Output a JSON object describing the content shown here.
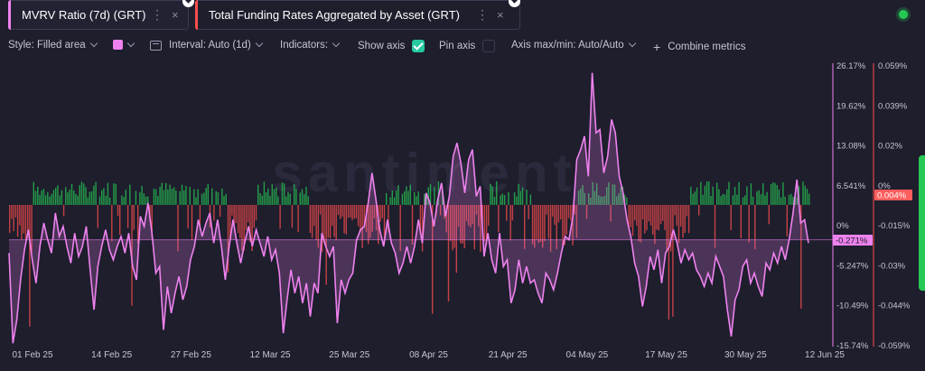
{
  "tabs": [
    {
      "title": "MVRV Ratio (7d) (GRT)",
      "bar_color": "#ee82ee",
      "active": true
    },
    {
      "title": "Total Funding Rates Aggregated by Asset (GRT)",
      "bar_color": "#ff4d4d",
      "active": false
    }
  ],
  "icons": {
    "more": "⋮",
    "close": "×",
    "pin": "⯁"
  },
  "toolbar": {
    "style_label": "Style: Filled area",
    "interval_label": "Interval: Auto (1d)",
    "indicators_label": "Indicators:",
    "show_axis_label": "Show axis",
    "pin_axis_label": "Pin axis",
    "axis_minmax_label": "Axis max/min: Auto/Auto",
    "combine_label": "Combine metrics",
    "plus": "+",
    "style_color": "#ee82ee"
  },
  "watermark": "santiment",
  "chart_data": {
    "type": "area",
    "x_ticks": [
      "01 Feb 25",
      "14 Feb 25",
      "27 Feb 25",
      "12 Mar 25",
      "25 Mar 25",
      "08 Apr 25",
      "21 Apr 25",
      "04 May 25",
      "17 May 25",
      "30 May 25",
      "12 Jun 25"
    ],
    "series": [
      {
        "name": "MVRV Ratio (7d) (GRT)",
        "type": "area",
        "color": "#ee82ee",
        "axis": "left",
        "unit": "%",
        "current_value": "-0.271%",
        "ylim": [
          -15.74,
          26.17
        ],
        "ticks": [
          "26.17%",
          "19.62%",
          "13.08%",
          "6.541%",
          "0%",
          "-5.247%",
          "-10.49%",
          "-15.74%"
        ],
        "values": [
          -2.0,
          -15.5,
          -12.0,
          -6.0,
          -1.5,
          1.5,
          -3.0,
          -6.5,
          -1.0,
          2.5,
          0.0,
          -2.0,
          4.0,
          0.5,
          2.0,
          -1.0,
          -3.5,
          1.0,
          -2.5,
          -1.0,
          2.0,
          -4.5,
          -10.5,
          -4.0,
          -1.0,
          1.5,
          -1.5,
          -3.0,
          -1.0,
          0.5,
          -2.0,
          1.0,
          -4.0,
          -6.0,
          3.5,
          2.0,
          5.5,
          1.0,
          -5.0,
          -4.0,
          -13.5,
          -7.0,
          -11.0,
          -8.0,
          -5.5,
          -9.0,
          -7.0,
          -3.0,
          -1.0,
          3.0,
          0.5,
          2.5,
          4.0,
          -0.5,
          3.0,
          -1.0,
          -6.0,
          -1.0,
          3.0,
          -0.5,
          -3.5,
          -0.5,
          2.0,
          -1.0,
          1.5,
          -0.5,
          -2.5,
          0.5,
          -3.0,
          -1.5,
          -5.0,
          -14.0,
          -9.0,
          -4.5,
          -8.0,
          -5.5,
          -9.5,
          -6.5,
          -11.5,
          -6.5,
          -8.0,
          1.0,
          -1.0,
          -2.5,
          -1.0,
          -12.5,
          -6.0,
          -8.0,
          -6.0,
          -5.0,
          0.0,
          1.5,
          2.0,
          5.5,
          10.0,
          6.0,
          1.5,
          -1.0,
          3.0,
          -0.5,
          -2.0,
          -5.0,
          -3.5,
          -1.0,
          -3.5,
          -1.0,
          3.0,
          -0.5,
          7.0,
          5.5,
          2.0,
          6.0,
          8.5,
          3.5,
          6.5,
          12.5,
          14.5,
          11.5,
          7.0,
          12.0,
          13.5,
          6.5,
          8.0,
          -2.5,
          1.0,
          -3.0,
          -5.0,
          1.0,
          -4.0,
          -3.0,
          -9.5,
          -7.5,
          -3.0,
          -6.5,
          -4.0,
          -6.5,
          -6.0,
          -8.0,
          -9.5,
          -5.0,
          -6.0,
          -7.5,
          -5.0,
          -2.0,
          0.5,
          0.0,
          3.5,
          12.0,
          13.5,
          15.5,
          9.5,
          25.0,
          16.0,
          16.5,
          10.0,
          12.5,
          18.0,
          16.0,
          9.5,
          7.0,
          3.0,
          0.5,
          -3.5,
          -5.5,
          -10.0,
          -7.0,
          -2.5,
          -4.5,
          -1.5,
          -6.5,
          -2.0,
          -1.0,
          1.5,
          -0.5,
          -3.5,
          -1.5,
          -3.0,
          -2.0,
          -4.5,
          -5.5,
          -7.0,
          -5.0,
          -6.5,
          -2.5,
          -4.0,
          -5.5,
          -10.5,
          -14.5,
          -9.0,
          -7.5,
          -4.0,
          -3.0,
          -6.5,
          -5.0,
          -7.0,
          -8.5,
          -3.5,
          -4.5,
          -2.0,
          -3.5,
          -1.0,
          -3.0,
          0.0,
          4.0,
          9.0,
          2.5,
          3.0,
          -0.5
        ]
      },
      {
        "name": "Total Funding Rates Aggregated by Asset (GRT)",
        "type": "bar",
        "color_positive": "#26c953",
        "color_negative": "#ff4d4d",
        "axis": "right",
        "unit": "%",
        "current_value": "0.004%",
        "ylim": [
          -0.059,
          0.059
        ],
        "ticks": [
          "0.059%",
          "0.039%",
          "0.02%",
          "0%",
          "-0.015%",
          "-0.03%",
          "-0.044%",
          "-0.059%"
        ]
      }
    ],
    "grid": false,
    "legend": "tabs"
  }
}
